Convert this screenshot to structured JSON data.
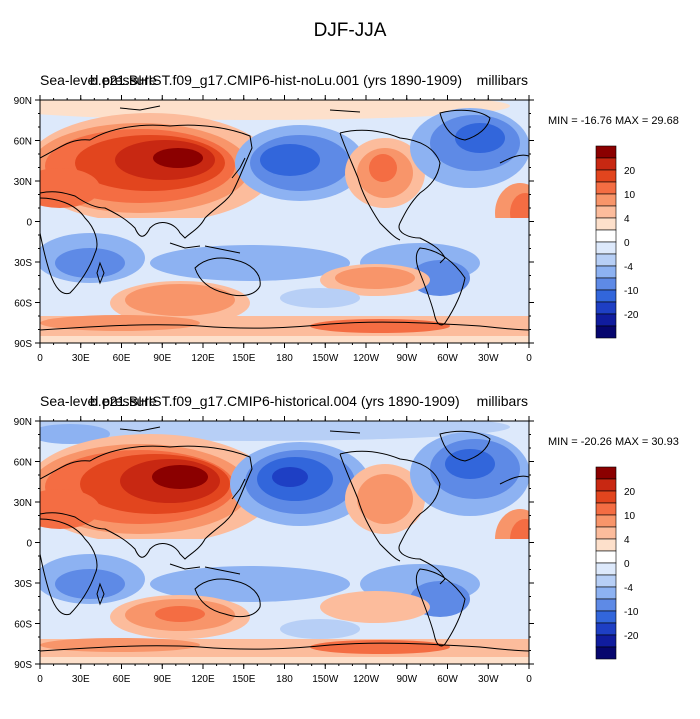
{
  "title": "DJF-JJA",
  "panels": [
    {
      "left_label": "Sea-level pressure",
      "center_label": "b.e21.BHIST.f09_g17.CMIP6-hist-noLu.001 (yrs 1890-1909)",
      "right_label": "millibars",
      "min_max_text": "MIN = -16.76 MAX =  29.68",
      "min": -16.76,
      "max": 29.68
    },
    {
      "left_label": "Sea-level pressure",
      "center_label": "b.e21.BHIST.f09_g17.CMIP6-historical.004 (yrs 1890-1909)",
      "right_label": "millibars",
      "min_max_text": "MIN = -20.26 MAX =  30.93",
      "min": -20.26,
      "max": 30.93
    }
  ],
  "lat_labels": [
    "90N",
    "60N",
    "30N",
    "0",
    "30S",
    "60S",
    "90S"
  ],
  "lon_labels": [
    "0",
    "30E",
    "60E",
    "90E",
    "120E",
    "150E",
    "180",
    "150W",
    "120W",
    "90W",
    "60W",
    "30W",
    "0"
  ],
  "colorbar": {
    "labels": [
      "20",
      "10",
      "4",
      "0",
      "-4",
      "-10",
      "-20"
    ],
    "colors": [
      "#8b0000",
      "#c82812",
      "#e2451e",
      "#f46d43",
      "#f8956a",
      "#fcbc9c",
      "#fde0cb",
      "#ffffff",
      "#dde9fb",
      "#b7cff6",
      "#8db2f2",
      "#5e8ae6",
      "#3266db",
      "#1e3fc4",
      "#101c9e",
      "#06066e"
    ]
  },
  "colors": {
    "neutral": "#f4f1f0",
    "coast": "#000000"
  }
}
